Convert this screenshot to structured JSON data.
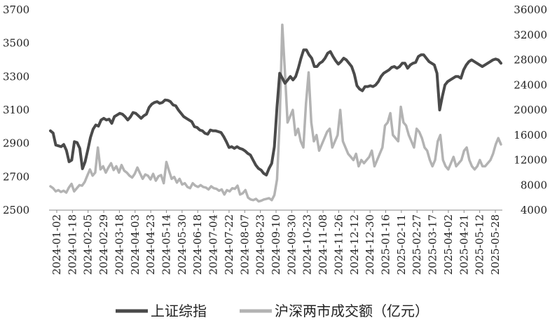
{
  "chart_data": {
    "type": "line",
    "left_axis": {
      "ticks": [
        "3700",
        "3500",
        "3300",
        "3100",
        "2900",
        "2700",
        "2500"
      ],
      "range": [
        2500,
        3700
      ]
    },
    "right_axis": {
      "ticks": [
        "36000",
        "32000",
        "28000",
        "24000",
        "20000",
        "16000",
        "12000",
        "8000",
        "4000"
      ],
      "range": [
        4000,
        36000
      ]
    },
    "x_labels": [
      "2024-01-02",
      "2024-01-18",
      "2024-02-05",
      "2024-02-29",
      "2024-03-18",
      "2024-04-03",
      "2024-04-23",
      "2024-05-14",
      "2024-05-30",
      "2024-06-18",
      "2024-07-04",
      "2024-07-22",
      "2024-08-07",
      "2024-08-23",
      "2024-09-10",
      "2024-09-30",
      "2024-10-23",
      "2024-11-08",
      "2024-11-26",
      "2024-12-12",
      "2024-12-30",
      "2025-01-16",
      "2025-02-11",
      "2025-02-27",
      "2025-03-17",
      "2025-04-02",
      "2025-04-21",
      "2025-05-12",
      "2025-05-28"
    ],
    "series": [
      {
        "name": "上证综指",
        "axis": "left",
        "color": "#4a4a4a",
        "values": [
          2975,
          2962,
          2890,
          2885,
          2880,
          2893,
          2858,
          2790,
          2800,
          2910,
          2905,
          2870,
          2748,
          2790,
          2860,
          2935,
          2985,
          3010,
          3003,
          3040,
          3050,
          3040,
          3045,
          3020,
          3060,
          3070,
          3080,
          3075,
          3060,
          3040,
          3058,
          3085,
          3080,
          3065,
          3050,
          3065,
          3075,
          3115,
          3135,
          3145,
          3150,
          3140,
          3145,
          3160,
          3158,
          3150,
          3130,
          3125,
          3100,
          3080,
          3060,
          3050,
          3040,
          3030,
          3000,
          2995,
          2980,
          2975,
          2960,
          2955,
          2980,
          2975,
          2975,
          2970,
          2965,
          2940,
          2910,
          2875,
          2880,
          2870,
          2880,
          2870,
          2865,
          2855,
          2840,
          2830,
          2800,
          2770,
          2750,
          2740,
          2720,
          2710,
          2750,
          2780,
          2880,
          3120,
          3320,
          3290,
          3260,
          3280,
          3300,
          3280,
          3300,
          3350,
          3410,
          3460,
          3460,
          3430,
          3410,
          3360,
          3360,
          3380,
          3390,
          3410,
          3440,
          3450,
          3420,
          3395,
          3375,
          3390,
          3410,
          3400,
          3380,
          3360,
          3315,
          3245,
          3225,
          3215,
          3240,
          3240,
          3245,
          3240,
          3250,
          3270,
          3300,
          3320,
          3330,
          3340,
          3355,
          3360,
          3350,
          3360,
          3380,
          3380,
          3350,
          3370,
          3380,
          3385,
          3420,
          3430,
          3430,
          3410,
          3390,
          3380,
          3370,
          3320,
          3100,
          3180,
          3250,
          3270,
          3280,
          3290,
          3300,
          3300,
          3290,
          3340,
          3370,
          3390,
          3400,
          3390,
          3380,
          3370,
          3360,
          3370,
          3380,
          3390,
          3400,
          3405,
          3400,
          3380
        ]
      },
      {
        "name": "沪深两市成交额（亿元）",
        "axis": "right",
        "color": "#b3b3b3",
        "values": [
          7800,
          7500,
          7000,
          7200,
          6900,
          7100,
          6800,
          7600,
          8200,
          7000,
          7500,
          8000,
          7900,
          8500,
          9500,
          10500,
          9500,
          10000,
          14000,
          10500,
          11000,
          10000,
          10800,
          11500,
          10400,
          11000,
          10000,
          11200,
          10300,
          10000,
          9500,
          9200,
          9800,
          10800,
          9900,
          9000,
          9700,
          9500,
          8900,
          9800,
          8700,
          9400,
          9600,
          8300,
          11700,
          10300,
          9000,
          9300,
          8400,
          9000,
          8100,
          8300,
          7700,
          7500,
          8300,
          7900,
          7700,
          8000,
          7700,
          7600,
          7300,
          7800,
          7500,
          7400,
          7100,
          7300,
          6500,
          7200,
          7000,
          7500,
          7400,
          7900,
          6500,
          6700,
          7200,
          6000,
          5700,
          5600,
          5800,
          5400,
          5500,
          5700,
          5800,
          5900,
          5600,
          6400,
          8900,
          18000,
          33600,
          26000,
          18000,
          19000,
          20000,
          16000,
          17000,
          15000,
          14000,
          21000,
          26000,
          18000,
          15000,
          16000,
          13500,
          14500,
          15500,
          16500,
          17000,
          14000,
          15000,
          16000,
          20000,
          15000,
          14000,
          13000,
          12500,
          12000,
          13000,
          11000,
          12000,
          11500,
          12000,
          12500,
          13500,
          11000,
          12000,
          13000,
          14000,
          17500,
          18000,
          19500,
          16000,
          15500,
          15000,
          20500,
          18000,
          17500,
          16000,
          15000,
          14000,
          17000,
          16500,
          15500,
          14000,
          13500,
          12000,
          11000,
          12000,
          15000,
          16000,
          12000,
          11000,
          10500,
          11500,
          12500,
          11000,
          11500,
          12000,
          13500,
          14000,
          12000,
          11000,
          10500,
          11000,
          12000,
          11000,
          11000,
          11500,
          12000,
          13000,
          14500,
          15500,
          14500
        ]
      }
    ],
    "legend": {
      "position": "bottom"
    }
  }
}
